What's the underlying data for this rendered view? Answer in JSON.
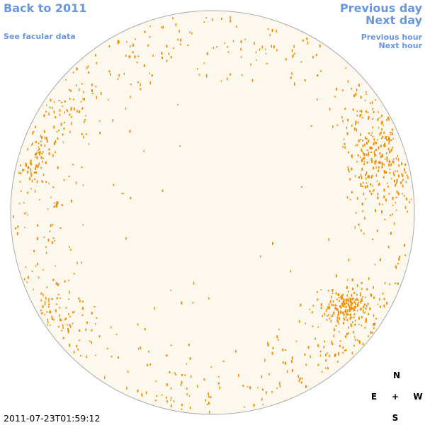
{
  "nav": {
    "back": "Back to 2011",
    "facular": "See facular data",
    "previous_day": "Previous day",
    "next_day": "Next day",
    "previous_hour": "Previous hour",
    "next_hour": "Next hour"
  },
  "compass": {
    "north": "N",
    "east": "E",
    "center": "+",
    "west": "W",
    "south": "S"
  },
  "timestamp": "2011-07-23T01:59:12"
}
